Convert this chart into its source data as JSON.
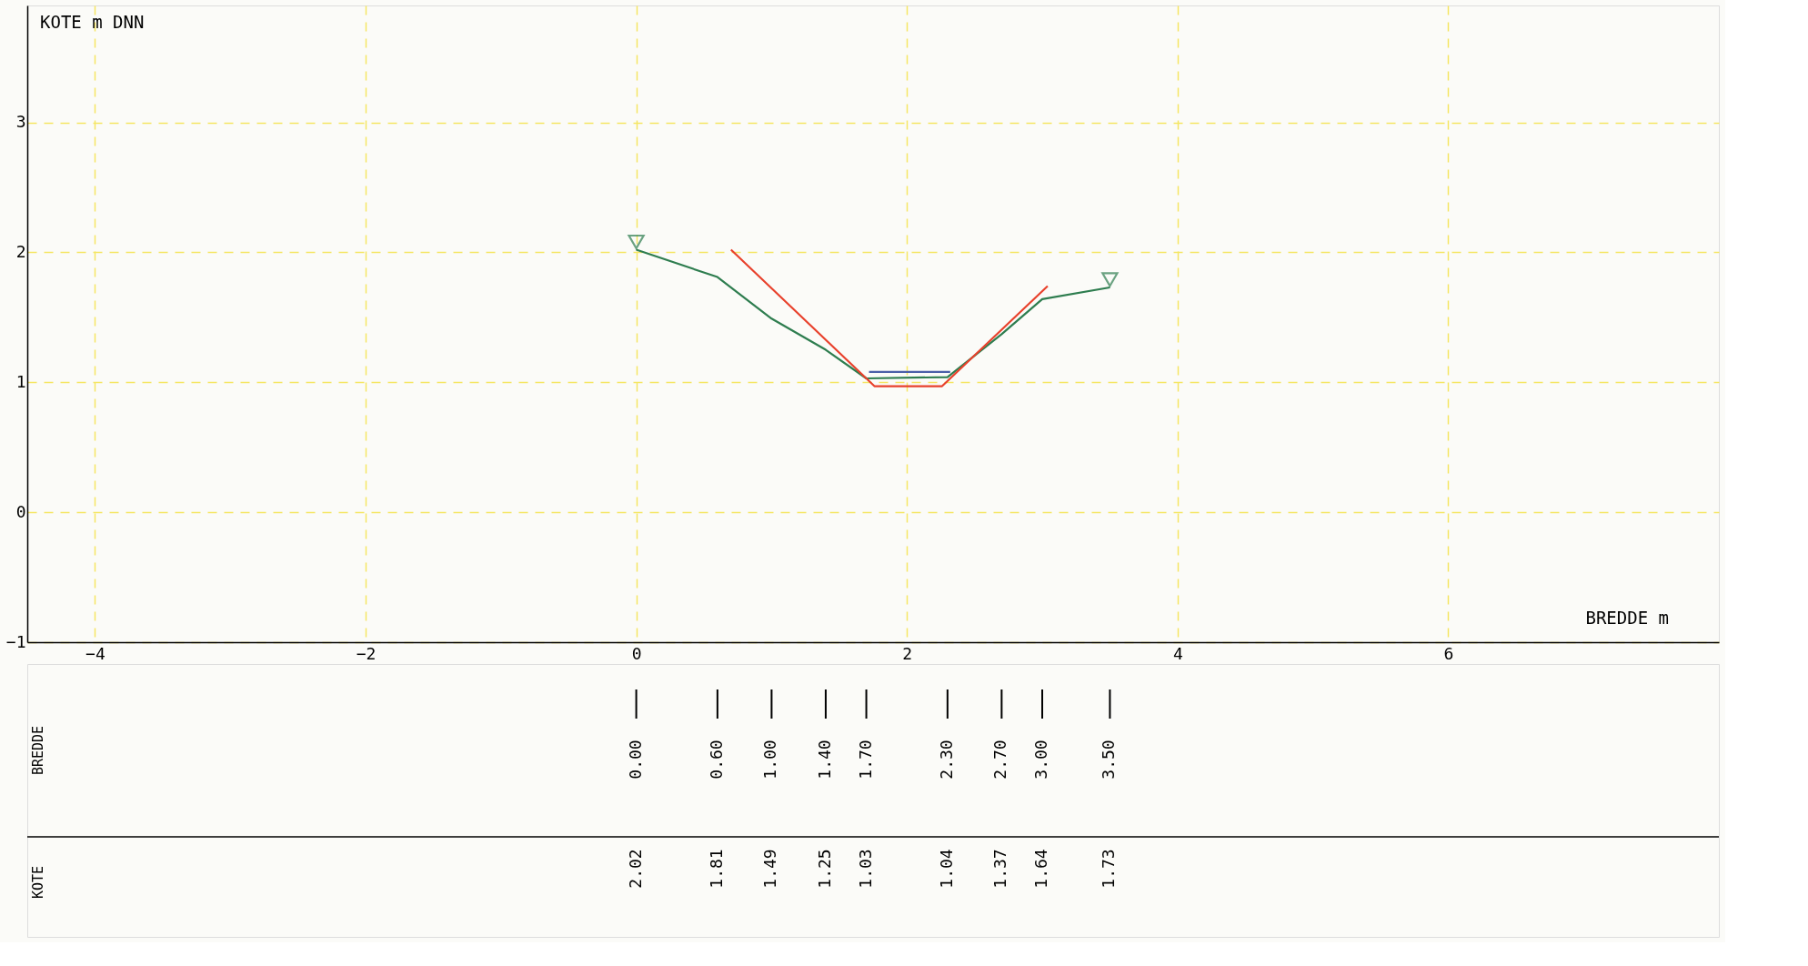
{
  "chart_data": {
    "type": "line",
    "ylabel": "KOTE m DNN",
    "xlabel": "BREDDE m",
    "xlim": [
      -4.5,
      8.0
    ],
    "xticks": [
      -4,
      -2,
      0,
      2,
      4,
      6
    ],
    "ylim": [
      -1,
      3.9
    ],
    "yticks": [
      -1,
      0,
      1,
      2,
      3
    ],
    "grid": true,
    "line_style": "solid",
    "series": [
      {
        "color": "#2e7d4f",
        "x": [
          0,
          0.6,
          1.0,
          1.4,
          1.7,
          2.3,
          2.7,
          3.0,
          3.5
        ],
        "values": [
          2.02,
          1.81,
          1.49,
          1.25,
          1.03,
          1.04,
          1.37,
          1.64,
          1.73
        ]
      },
      {
        "color": "#e8412c",
        "x": [
          0.7,
          1.76,
          2.26,
          3.04
        ],
        "values": [
          2.02,
          0.97,
          0.97,
          1.74
        ]
      },
      {
        "color": "#4a5fa8",
        "x": [
          1.72,
          2.32
        ],
        "values": [
          1.08,
          1.08
        ]
      },
      {
        "type": "scatter",
        "marker": "triangle",
        "color": "#2e7d4f",
        "x": [
          0,
          3.5
        ],
        "values": [
          2.08,
          1.79
        ]
      }
    ],
    "annotations": [
      "BREDDE",
      "KOTE",
      "0.00",
      "0.60",
      "1.00",
      "1.40",
      "1.70",
      "2.30",
      "2.70",
      "3.00",
      "3.50",
      "2.02",
      "1.81",
      "1.49",
      "1.25",
      "1.03",
      "1.04",
      "1.37",
      "1.64",
      "1.73"
    ]
  }
}
